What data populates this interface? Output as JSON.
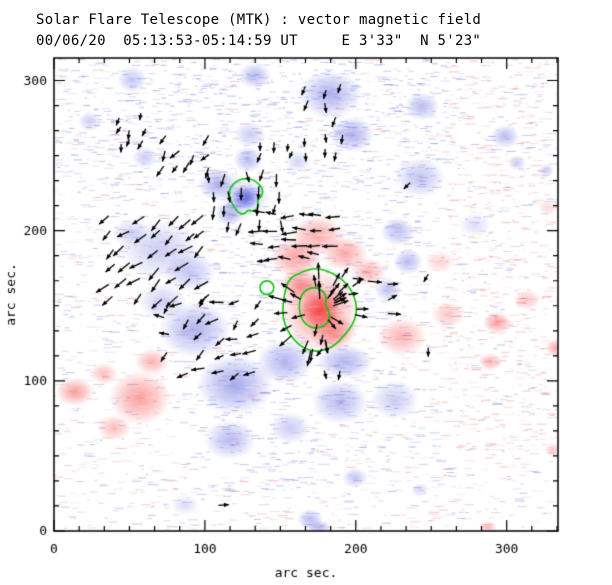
{
  "chart_data": {
    "type": "heatmap",
    "title": "Solar Flare Telescope (MTK) : vector magnetic field",
    "subtitle": "00/06/20  05:13:53-05:14:59 UT     E 3'33\"  N 5'23\"",
    "xlabel": "arc sec.",
    "ylabel": "arc sec.",
    "xlim": [
      0,
      334
    ],
    "ylim": [
      0,
      315
    ],
    "xticks": [
      0,
      100,
      200,
      300
    ],
    "yticks": [
      0,
      100,
      200,
      300
    ],
    "minor_per_major": 6,
    "grid": false,
    "legend": "none",
    "colors": {
      "positive": "#f64646",
      "negative": "#555cdc",
      "positive_noise": "#f27878",
      "negative_noise": "#6e78e1",
      "contour": "#0fc60f",
      "vectors": "#000000",
      "axis": "#000000",
      "background": "#ffffff"
    },
    "region_format": [
      "x_arcsec",
      "y_arcsec",
      "rx_arcsec",
      "ry_arcsec",
      "intensity"
    ],
    "negative_regions": [
      [
        51.7,
        300.7,
        9.9,
        8.7,
        0.35
      ],
      [
        23.9,
        272.7,
        8,
        6.7,
        0.3
      ],
      [
        133.2,
        303.3,
        10.6,
        8.7,
        0.4
      ],
      [
        182.9,
        290.7,
        21.2,
        16,
        0.45
      ],
      [
        197.5,
        264,
        14.6,
        12,
        0.45
      ],
      [
        243.9,
        282.7,
        11.3,
        9.3,
        0.4
      ],
      [
        60.3,
        248.7,
        8.6,
        7.3,
        0.3
      ],
      [
        108.7,
        230.7,
        13.3,
        10.7,
        0.45
      ],
      [
        128.6,
        247.3,
        9.9,
        8.7,
        0.4
      ],
      [
        129.9,
        264,
        10.6,
        8.7,
        0.3
      ],
      [
        126.6,
        222,
        9.3,
        8,
        0.85
      ],
      [
        126.6,
        222,
        15.9,
        13.3,
        0.35
      ],
      [
        116.6,
        211.3,
        9.9,
        8,
        0.45
      ],
      [
        242.5,
        235.3,
        16.6,
        13.3,
        0.35
      ],
      [
        227.9,
        199.3,
        11.3,
        9.3,
        0.4
      ],
      [
        234.6,
        179.3,
        9.9,
        8.7,
        0.4
      ],
      [
        221.3,
        160.7,
        9.3,
        8,
        0.35
      ],
      [
        298.9,
        262.7,
        9.3,
        8,
        0.4
      ],
      [
        306.8,
        245.3,
        6,
        5.3,
        0.3
      ],
      [
        326,
        240,
        5.3,
        4.7,
        0.3
      ],
      [
        70.2,
        187.3,
        26.5,
        20,
        0.3
      ],
      [
        90.1,
        172.7,
        17.2,
        13.3,
        0.35
      ],
      [
        50.4,
        198.7,
        11.9,
        9.3,
        0.25
      ],
      [
        93.4,
        134,
        23.9,
        18.7,
        0.45
      ],
      [
        72.2,
        152.7,
        15.9,
        12,
        0.3
      ],
      [
        119.9,
        97.3,
        25.2,
        20,
        0.5
      ],
      [
        153.1,
        112.7,
        18.6,
        14.7,
        0.45
      ],
      [
        192.8,
        112.7,
        18.6,
        11.3,
        0.45
      ],
      [
        189.5,
        86,
        18.6,
        14.7,
        0.4
      ],
      [
        225.9,
        87.3,
        15.9,
        13.3,
        0.3
      ],
      [
        116.6,
        60.7,
        17.2,
        13.3,
        0.4
      ],
      [
        156.4,
        68.7,
        13.3,
        10.7,
        0.3
      ],
      [
        199.5,
        35.3,
        8.6,
        6.7,
        0.35
      ],
      [
        169.6,
        8,
        8.6,
        6.7,
        0.4
      ],
      [
        86.8,
        17.3,
        9.3,
        6.7,
        0.2
      ],
      [
        242.5,
        27.3,
        6,
        4.7,
        0.25
      ],
      [
        175.6,
        2,
        8.6,
        5.3,
        0.45
      ],
      [
        279,
        204,
        10.6,
        8,
        0.2
      ],
      [
        161.7,
        246,
        8.6,
        7.3,
        0.25
      ]
    ],
    "positive_regions": [
      [
        176.3,
        147.3,
        13.3,
        13.3,
        0.95
      ],
      [
        176.3,
        146.7,
        26.5,
        28,
        0.5
      ],
      [
        184.9,
        132.7,
        15.9,
        13.3,
        0.5
      ],
      [
        160.4,
        182,
        17.2,
        13.3,
        0.5
      ],
      [
        174.9,
        196.7,
        17.9,
        13.3,
        0.45
      ],
      [
        192.8,
        184.7,
        15.2,
        11.3,
        0.45
      ],
      [
        208.1,
        172.7,
        11.9,
        9.3,
        0.4
      ],
      [
        163,
        164,
        13.3,
        10.7,
        0.55
      ],
      [
        13.9,
        92.7,
        12.6,
        9.3,
        0.5
      ],
      [
        57,
        88.7,
        20.5,
        18,
        0.5
      ],
      [
        64.9,
        112.7,
        11.3,
        8.7,
        0.4
      ],
      [
        39.8,
        68.7,
        11.3,
        8.7,
        0.35
      ],
      [
        33.1,
        104.7,
        9.3,
        7.3,
        0.35
      ],
      [
        230.6,
        129.3,
        16.6,
        12.7,
        0.4
      ],
      [
        261,
        144,
        11.3,
        8.7,
        0.3
      ],
      [
        293.6,
        138.7,
        9.3,
        7.3,
        0.5
      ],
      [
        288.9,
        112.7,
        8,
        6,
        0.4
      ],
      [
        313.5,
        154,
        9.3,
        6.7,
        0.3
      ],
      [
        332.7,
        122,
        7.3,
        6,
        0.45
      ],
      [
        330.7,
        54,
        6,
        4.7,
        0.3
      ],
      [
        255.8,
        179.3,
        9.9,
        7.3,
        0.25
      ],
      [
        287.6,
        2.7,
        6,
        4,
        0.4
      ],
      [
        327.4,
        215.3,
        6.6,
        5.3,
        0.2
      ]
    ],
    "contours": [
      {
        "name": "negative-spot-contour",
        "type": "polygon",
        "points": [
          [
            118.6,
            231.3
          ],
          [
            123.9,
            234.7
          ],
          [
            130.6,
            234.7
          ],
          [
            135.9,
            231.3
          ],
          [
            138.5,
            227.3
          ],
          [
            137.8,
            222.7
          ],
          [
            134.5,
            220.7
          ],
          [
            135.9,
            216
          ],
          [
            132.5,
            212.7
          ],
          [
            128.6,
            214
          ],
          [
            125.9,
            210.7
          ],
          [
            121.9,
            212
          ],
          [
            119.3,
            216
          ],
          [
            116.6,
            220.7
          ],
          [
            116,
            226.7
          ]
        ]
      },
      {
        "name": "positive-spot-outer-contour",
        "type": "polygon",
        "points": [
          [
            155.6,
            168
          ],
          [
            164.2,
            172.7
          ],
          [
            173.5,
            175.3
          ],
          [
            182.8,
            172.7
          ],
          [
            190.7,
            168
          ],
          [
            196.7,
            161.3
          ],
          [
            200,
            153.3
          ],
          [
            200.7,
            145.3
          ],
          [
            198,
            137.3
          ],
          [
            192.7,
            130.7
          ],
          [
            187.4,
            124.7
          ],
          [
            180.8,
            120.7
          ],
          [
            172.8,
            119.3
          ],
          [
            164.9,
            122
          ],
          [
            158.9,
            127.3
          ],
          [
            154.3,
            134
          ],
          [
            151.7,
            142
          ],
          [
            151.7,
            150.7
          ],
          [
            153,
            159.3
          ]
        ]
      },
      {
        "name": "positive-spot-inner-contour",
        "type": "polygon",
        "points": [
          [
            164.9,
            159.3
          ],
          [
            171.5,
            162.7
          ],
          [
            177.5,
            160.7
          ],
          [
            180.8,
            156
          ],
          [
            179.5,
            151.3
          ],
          [
            182.1,
            146.7
          ],
          [
            182.8,
            140.7
          ],
          [
            178.8,
            136
          ],
          [
            172.2,
            134.7
          ],
          [
            166.2,
            138
          ],
          [
            162.9,
            144
          ],
          [
            162.3,
            152
          ]
        ]
      },
      {
        "name": "small-plage-contour",
        "type": "circle",
        "cx": 141.1,
        "cy": 162,
        "r": 4.6
      }
    ],
    "vector_field": {
      "seed": 7,
      "skip_fraction": 0.15,
      "clusters": [
        {
          "kind": "radial",
          "cx": 176.3,
          "cy": 147,
          "rmin": 6,
          "rmax": 28,
          "count": 32,
          "len": 9.5
        },
        {
          "kind": "grid",
          "x": [
            140,
            196
          ],
          "y": [
            182,
            212
          ],
          "spacing": 9.5,
          "angle": 180,
          "jitter": 14,
          "len": 9
        },
        {
          "kind": "grid",
          "x": [
            38,
            102
          ],
          "y": [
            156,
            214
          ],
          "spacing": 10.5,
          "angle": 222,
          "jitter": 18,
          "len": 9
        },
        {
          "kind": "grid",
          "x": [
            104,
            152
          ],
          "y": [
            206,
            246
          ],
          "spacing": 11,
          "angle": 268,
          "jitter": 22,
          "len": 8
        },
        {
          "kind": "grid",
          "x": [
            44,
            62
          ],
          "y": [
            260,
            276
          ],
          "spacing": 8,
          "angle": 252,
          "jitter": 18,
          "len": 6
        },
        {
          "kind": "grid",
          "x": [
            73,
            105
          ],
          "y": [
            243,
            263
          ],
          "spacing": 9.5,
          "angle": 235,
          "jitter": 22,
          "len": 7
        },
        {
          "kind": "grid",
          "x": [
            167,
            196
          ],
          "y": [
            252,
            296
          ],
          "spacing": 11,
          "angle": 262,
          "jitter": 18,
          "len": 7
        },
        {
          "kind": "grid",
          "x": [
            75,
            140
          ],
          "y": [
            106,
            155
          ],
          "spacing": 12,
          "angle": 205,
          "jitter": 45,
          "len": 8
        },
        {
          "kind": "grid",
          "x": [
            197,
            228
          ],
          "y": [
            144,
            174
          ],
          "spacing": 11,
          "angle": 10,
          "jitter": 25,
          "len": 8
        },
        {
          "kind": "grid",
          "x": [
            179,
            199
          ],
          "y": [
            108,
            130
          ],
          "spacing": 11,
          "angle": 265,
          "jitter": 35,
          "len": 6
        },
        {
          "kind": "grid",
          "x": [
            138,
            162
          ],
          "y": [
            251,
            263
          ],
          "spacing": 9,
          "angle": 255,
          "jitter": 15,
          "len": 6
        },
        {
          "kind": "list",
          "arrows": [
            [
              236,
              232,
              225,
              6
            ],
            [
              248,
              122,
              270,
              6
            ],
            [
              109,
              17,
              5,
              7
            ],
            [
              248,
              171,
              240,
              6
            ]
          ]
        }
      ]
    },
    "noise": {
      "background_dashes": 2400,
      "white_streaks": 1700,
      "tint_patches": [
        {
          "x": [
            256,
            333
          ],
          "y": [
            40,
            315
          ],
          "color": "positive",
          "n": 420
        },
        {
          "x": [
            0,
            150
          ],
          "y": [
            225,
            315
          ],
          "color": "negative",
          "n": 320
        },
        {
          "x": [
            95,
            245
          ],
          "y": [
            25,
            230
          ],
          "color": "negative",
          "n": 380
        },
        {
          "x": [
            150,
            260
          ],
          "y": [
            230,
            315
          ],
          "color": "negative",
          "n": 260
        }
      ]
    }
  }
}
